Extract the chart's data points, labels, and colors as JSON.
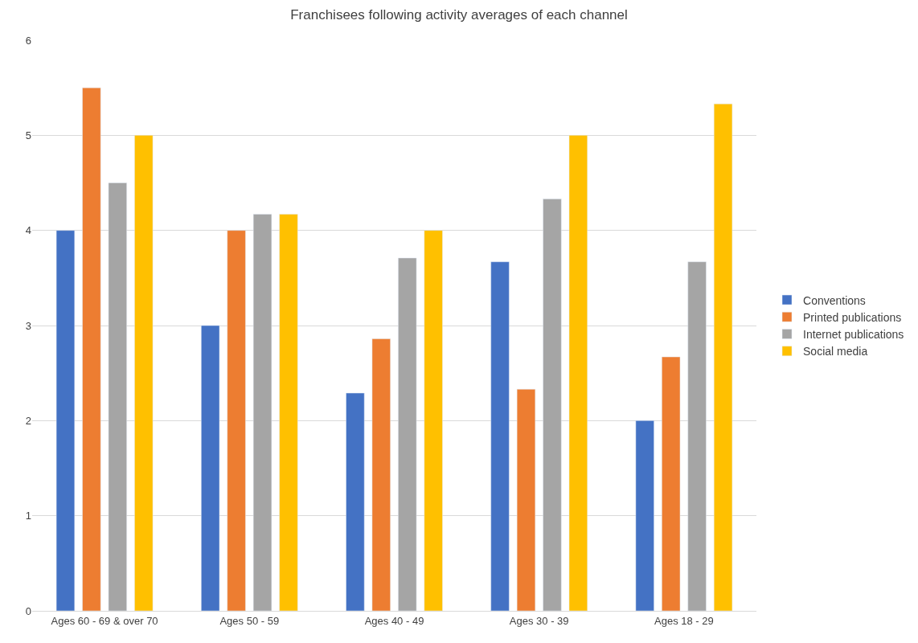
{
  "chart_data": {
    "type": "bar",
    "title": "Franchisees following activity averages of each channel",
    "categories": [
      "Ages 60 - 69 & over 70",
      "Ages 50 - 59",
      "Ages 40 - 49",
      "Ages 30 - 39",
      "Ages 18 - 29"
    ],
    "series": [
      {
        "name": "Conventions",
        "color": "#4472c4",
        "values": [
          4,
          3,
          2.29,
          3.67,
          2
        ]
      },
      {
        "name": "Printed publications",
        "color": "#ed7d31",
        "values": [
          5.5,
          4,
          2.86,
          2.33,
          2.67
        ]
      },
      {
        "name": "Internet publications",
        "color": "#a5a5a5",
        "values": [
          4.5,
          4.17,
          3.71,
          4.33,
          3.67
        ]
      },
      {
        "name": "Social media",
        "color": "#ffc000",
        "values": [
          5,
          4.17,
          4,
          5,
          5.33
        ]
      }
    ],
    "ylim": [
      0,
      6
    ],
    "yticks": [
      0,
      1,
      2,
      3,
      4,
      5,
      6
    ],
    "grid": "y",
    "legend": "right"
  }
}
